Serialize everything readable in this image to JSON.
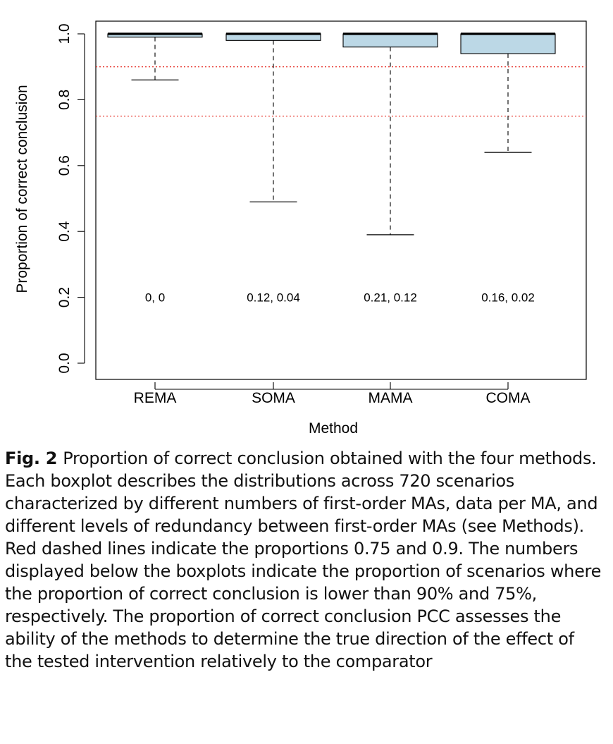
{
  "chart_data": {
    "type": "boxplot",
    "categories": [
      "REMA",
      "SOMA",
      "MAMA",
      "COMA"
    ],
    "boxes": [
      {
        "category": "REMA",
        "whisker_low": 0.86,
        "q1": 0.99,
        "median": 1.0,
        "q3": 1.0,
        "whisker_high": 1.0,
        "annotation": "0, 0"
      },
      {
        "category": "SOMA",
        "whisker_low": 0.49,
        "q1": 0.98,
        "median": 1.0,
        "q3": 1.0,
        "whisker_high": 1.0,
        "annotation": "0.12, 0.04"
      },
      {
        "category": "MAMA",
        "whisker_low": 0.39,
        "q1": 0.96,
        "median": 1.0,
        "q3": 1.0,
        "whisker_high": 1.0,
        "annotation": "0.21, 0.12"
      },
      {
        "category": "COMA",
        "whisker_low": 0.64,
        "q1": 0.94,
        "median": 1.0,
        "q3": 1.0,
        "whisker_high": 1.0,
        "annotation": "0.16, 0.02"
      }
    ],
    "reference_lines": [
      0.9,
      0.75
    ],
    "reference_line_color": "#e8413a",
    "box_fill": "#bcd8e6",
    "xlabel": "Method",
    "ylabel": "Proportion of correct conclusion",
    "ylim": [
      0,
      1.0
    ],
    "yticks": [
      "0.0",
      "0.2",
      "0.4",
      "0.6",
      "0.8",
      "1.0"
    ],
    "grid": false
  },
  "caption": {
    "label": "Fig. 2",
    "text": "Proportion of correct conclusion obtained with the four methods. Each boxplot describes the distributions across 720 scenarios characterized by different numbers of first-order MAs, data per MA, and different levels of redundancy between first-order MAs (see Methods). Red dashed lines indicate the proportions 0.75 and 0.9. The numbers displayed below the boxplots indicate the proportion of scenarios where the proportion of correct conclusion is lower than 90% and 75%, respectively. The proportion of correct conclusion PCC assesses the ability of the methods to determine the true direction of the effect of the tested intervention relatively to the comparator"
  }
}
